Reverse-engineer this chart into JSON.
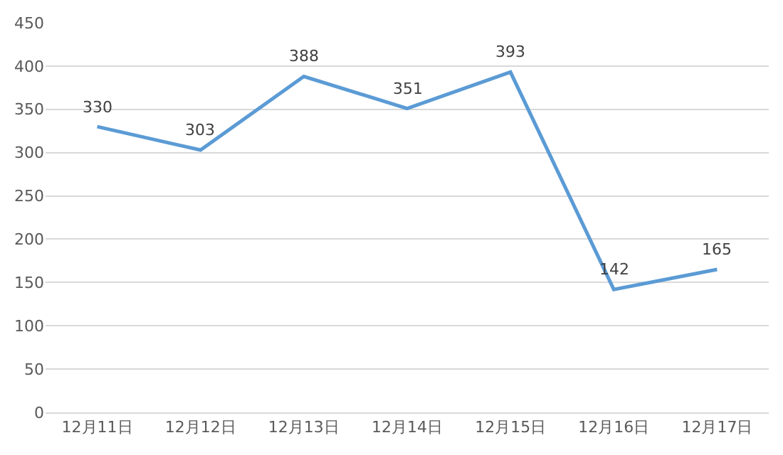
{
  "chart_data": {
    "type": "line",
    "categories": [
      "12月11日",
      "12月12日",
      "12月13日",
      "12月14日",
      "12月15日",
      "12月16日",
      "12月17日"
    ],
    "series": [
      {
        "color": "#5b9bd5",
        "values": [
          330,
          303,
          388,
          351,
          393,
          142,
          165
        ]
      }
    ],
    "ylim": [
      0,
      450
    ],
    "yticks": [
      0,
      50,
      100,
      150,
      200,
      250,
      300,
      350,
      400,
      450
    ],
    "grid": "y",
    "data_labels": true,
    "marker": "none",
    "line_style": "solid",
    "legend": false
  }
}
